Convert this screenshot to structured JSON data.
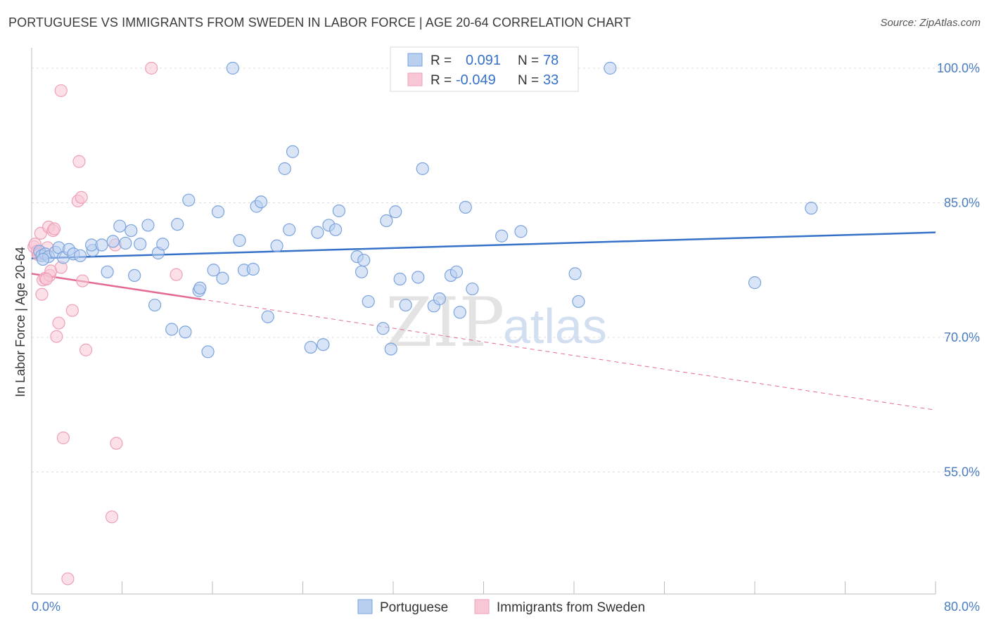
{
  "title": "PORTUGUESE VS IMMIGRANTS FROM SWEDEN IN LABOR FORCE | AGE 20-64 CORRELATION CHART",
  "source": "Source: ZipAtlas.com",
  "watermark": {
    "zip": "ZIP",
    "atlas": "atlas"
  },
  "chart_data": {
    "type": "scatter",
    "ylabel": "In Labor Force | Age 20-64",
    "xlim": [
      0,
      80
    ],
    "ylim": [
      40,
      101.5
    ],
    "y_ticks": [
      100,
      85,
      70,
      55
    ],
    "y_tick_labels": [
      "100.0%",
      "85.0%",
      "70.0%",
      "55.0%"
    ],
    "x_tick_labels": [
      "0.0%",
      "80.0%"
    ],
    "grid": true,
    "legend_position": "top-center",
    "series": [
      {
        "name": "Portuguese",
        "color": "#7aa3dd",
        "fill": "#b9cff0",
        "line_color": "#3571c8",
        "R": "0.091",
        "N": "78",
        "r_label": "R =",
        "n_label": "N =",
        "trend": {
          "x0": 0,
          "y0": 78.8,
          "x1": 80,
          "y1": 81.7,
          "dashed_from": null
        },
        "points": [
          [
            0.7,
            79.6
          ],
          [
            0.9,
            79.1
          ],
          [
            1.2,
            79.3
          ],
          [
            1.5,
            79.0
          ],
          [
            2.1,
            79.5
          ],
          [
            2.4,
            80.0
          ],
          [
            2.8,
            78.9
          ],
          [
            3.3,
            79.8
          ],
          [
            3.7,
            79.3
          ],
          [
            4.3,
            79.1
          ],
          [
            5.4,
            79.7
          ],
          [
            5.3,
            80.3
          ],
          [
            6.2,
            80.3
          ],
          [
            6.7,
            77.3
          ],
          [
            7.2,
            80.7
          ],
          [
            7.8,
            82.4
          ],
          [
            8.3,
            80.5
          ],
          [
            8.8,
            81.9
          ],
          [
            9.1,
            76.9
          ],
          [
            9.6,
            80.4
          ],
          [
            10.3,
            82.5
          ],
          [
            10.9,
            73.6
          ],
          [
            11.2,
            79.4
          ],
          [
            11.6,
            80.4
          ],
          [
            12.4,
            70.9
          ],
          [
            12.9,
            82.6
          ],
          [
            13.6,
            70.6
          ],
          [
            13.9,
            85.3
          ],
          [
            14.8,
            75.2
          ],
          [
            14.9,
            75.5
          ],
          [
            15.6,
            68.4
          ],
          [
            16.1,
            77.5
          ],
          [
            16.5,
            84.0
          ],
          [
            16.9,
            76.6
          ],
          [
            17.8,
            100.0
          ],
          [
            18.4,
            80.8
          ],
          [
            18.8,
            77.5
          ],
          [
            19.6,
            77.6
          ],
          [
            19.9,
            84.6
          ],
          [
            20.3,
            85.1
          ],
          [
            20.9,
            72.3
          ],
          [
            21.7,
            80.2
          ],
          [
            22.4,
            88.8
          ],
          [
            22.8,
            82.0
          ],
          [
            23.1,
            90.7
          ],
          [
            24.7,
            68.9
          ],
          [
            25.3,
            81.7
          ],
          [
            25.8,
            69.2
          ],
          [
            26.3,
            82.5
          ],
          [
            26.9,
            82.0
          ],
          [
            27.2,
            84.1
          ],
          [
            28.8,
            79.0
          ],
          [
            29.2,
            77.3
          ],
          [
            29.4,
            78.6
          ],
          [
            29.8,
            74.0
          ],
          [
            31.1,
            71.0
          ],
          [
            31.4,
            83.0
          ],
          [
            31.8,
            68.7
          ],
          [
            32.2,
            84.0
          ],
          [
            32.6,
            76.5
          ],
          [
            33.1,
            73.6
          ],
          [
            34.2,
            76.7
          ],
          [
            34.6,
            88.8
          ],
          [
            35.6,
            73.5
          ],
          [
            36.1,
            74.3
          ],
          [
            37.1,
            76.9
          ],
          [
            37.6,
            77.3
          ],
          [
            37.9,
            72.8
          ],
          [
            38.4,
            84.5
          ],
          [
            39.0,
            75.4
          ],
          [
            41.6,
            81.3
          ],
          [
            43.3,
            81.8
          ],
          [
            48.1,
            77.1
          ],
          [
            48.4,
            74.0
          ],
          [
            51.2,
            100.0
          ],
          [
            64.0,
            76.1
          ],
          [
            69.0,
            84.4
          ],
          [
            1.0,
            78.7
          ]
        ]
      },
      {
        "name": "Immigrants from Sweden",
        "color": "#eea0b8",
        "fill": "#f8c7d6",
        "line_color": "#e36b93",
        "R": "-0.049",
        "N": "33",
        "r_label": "R =",
        "n_label": "N =",
        "trend": {
          "x0": 0,
          "y0": 77.1,
          "x1": 80,
          "y1": 61.9,
          "solid_until": 15
        },
        "points": [
          [
            0.2,
            80.1
          ],
          [
            0.3,
            80.4
          ],
          [
            0.5,
            79.6
          ],
          [
            0.7,
            79.4
          ],
          [
            0.8,
            81.6
          ],
          [
            0.9,
            74.8
          ],
          [
            1.0,
            76.4
          ],
          [
            1.2,
            76.6
          ],
          [
            1.4,
            80.0
          ],
          [
            1.5,
            82.3
          ],
          [
            1.6,
            76.9
          ],
          [
            1.7,
            77.4
          ],
          [
            1.9,
            81.9
          ],
          [
            2.0,
            82.1
          ],
          [
            2.2,
            70.1
          ],
          [
            2.4,
            71.6
          ],
          [
            2.6,
            77.8
          ],
          [
            2.6,
            97.5
          ],
          [
            2.8,
            58.8
          ],
          [
            3.2,
            43.1
          ],
          [
            3.6,
            73.0
          ],
          [
            4.1,
            85.2
          ],
          [
            4.2,
            89.6
          ],
          [
            4.4,
            85.6
          ],
          [
            4.5,
            76.3
          ],
          [
            4.8,
            68.6
          ],
          [
            7.1,
            50.0
          ],
          [
            7.4,
            80.3
          ],
          [
            7.5,
            58.2
          ],
          [
            10.6,
            100.0
          ],
          [
            12.8,
            77.0
          ],
          [
            0.6,
            79.2
          ],
          [
            1.3,
            76.5
          ]
        ]
      }
    ]
  }
}
